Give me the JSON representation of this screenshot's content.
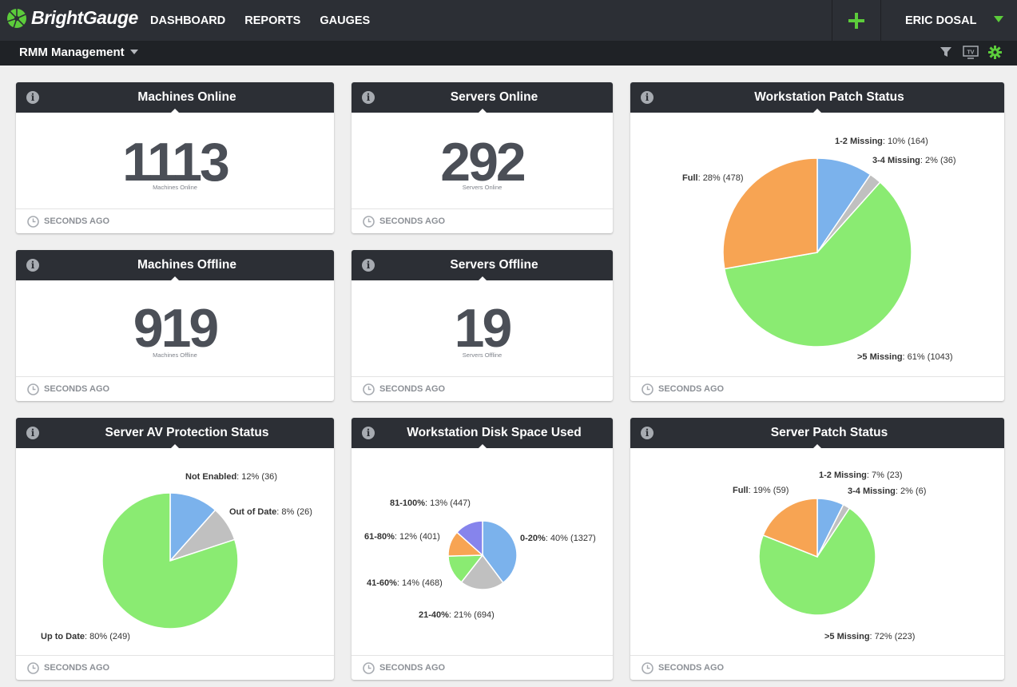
{
  "app": {
    "logo_text": "BrightGauge",
    "nav": [
      "DASHBOARD",
      "REPORTS",
      "GAUGES"
    ],
    "user_name": "ERIC DOSAL"
  },
  "dashboard": {
    "title": "RMM Management",
    "toolbar_icons": [
      "filter-icon",
      "tv-icon",
      "gear-icon"
    ]
  },
  "colors": {
    "blue": "#7bb2ec",
    "gray": "#c0c0c0",
    "green": "#8aeb72",
    "orange": "#f7a453",
    "purple": "#8684ec",
    "accent": "#5ccc3b"
  },
  "footer_text": "SECONDS AGO",
  "number_gauges": [
    {
      "title": "Machines Online",
      "value": "1113",
      "label": "Machines Online"
    },
    {
      "title": "Servers Online",
      "value": "292",
      "label": "Servers Online"
    },
    {
      "title": "Machines Offline",
      "value": "919",
      "label": "Machines Offline"
    },
    {
      "title": "Servers Offline",
      "value": "19",
      "label": "Servers Offline"
    }
  ],
  "chart_data": [
    {
      "type": "pie",
      "title": "Workstation Patch Status",
      "slices": [
        {
          "name": "1-2 Missing",
          "pct": "10%",
          "count": 164,
          "color": "#7bb2ec"
        },
        {
          "name": "3-4 Missing",
          "pct": "2%",
          "count": 36,
          "color": "#c0c0c0"
        },
        {
          "name": ">5 Missing",
          "pct": "61%",
          "count": 1043,
          "color": "#8aeb72"
        },
        {
          "name": "Full",
          "pct": "28%",
          "count": 478,
          "color": "#f7a453"
        }
      ]
    },
    {
      "type": "pie",
      "title": "Server AV Protection Status",
      "slices": [
        {
          "name": "Not Enabled",
          "pct": "12%",
          "count": 36,
          "color": "#7bb2ec"
        },
        {
          "name": "Out of Date",
          "pct": "8%",
          "count": 26,
          "color": "#c0c0c0"
        },
        {
          "name": "Up to Date",
          "pct": "80%",
          "count": 249,
          "color": "#8aeb72"
        }
      ]
    },
    {
      "type": "pie",
      "title": "Workstation Disk Space Used",
      "slices": [
        {
          "name": "0-20%",
          "pct": "40%",
          "count": 1327,
          "color": "#7bb2ec"
        },
        {
          "name": "21-40%",
          "pct": "21%",
          "count": 694,
          "color": "#c0c0c0"
        },
        {
          "name": "41-60%",
          "pct": "14%",
          "count": 468,
          "color": "#8aeb72"
        },
        {
          "name": "61-80%",
          "pct": "12%",
          "count": 401,
          "color": "#f7a453"
        },
        {
          "name": "81-100%",
          "pct": "13%",
          "count": 447,
          "color": "#8684ec"
        }
      ]
    },
    {
      "type": "pie",
      "title": "Server Patch Status",
      "slices": [
        {
          "name": "1-2 Missing",
          "pct": "7%",
          "count": 23,
          "color": "#7bb2ec"
        },
        {
          "name": "3-4 Missing",
          "pct": "2%",
          "count": 6,
          "color": "#c0c0c0"
        },
        {
          "name": ">5 Missing",
          "pct": "72%",
          "count": 223,
          "color": "#8aeb72"
        },
        {
          "name": "Full",
          "pct": "19%",
          "count": 59,
          "color": "#f7a453"
        }
      ]
    }
  ]
}
